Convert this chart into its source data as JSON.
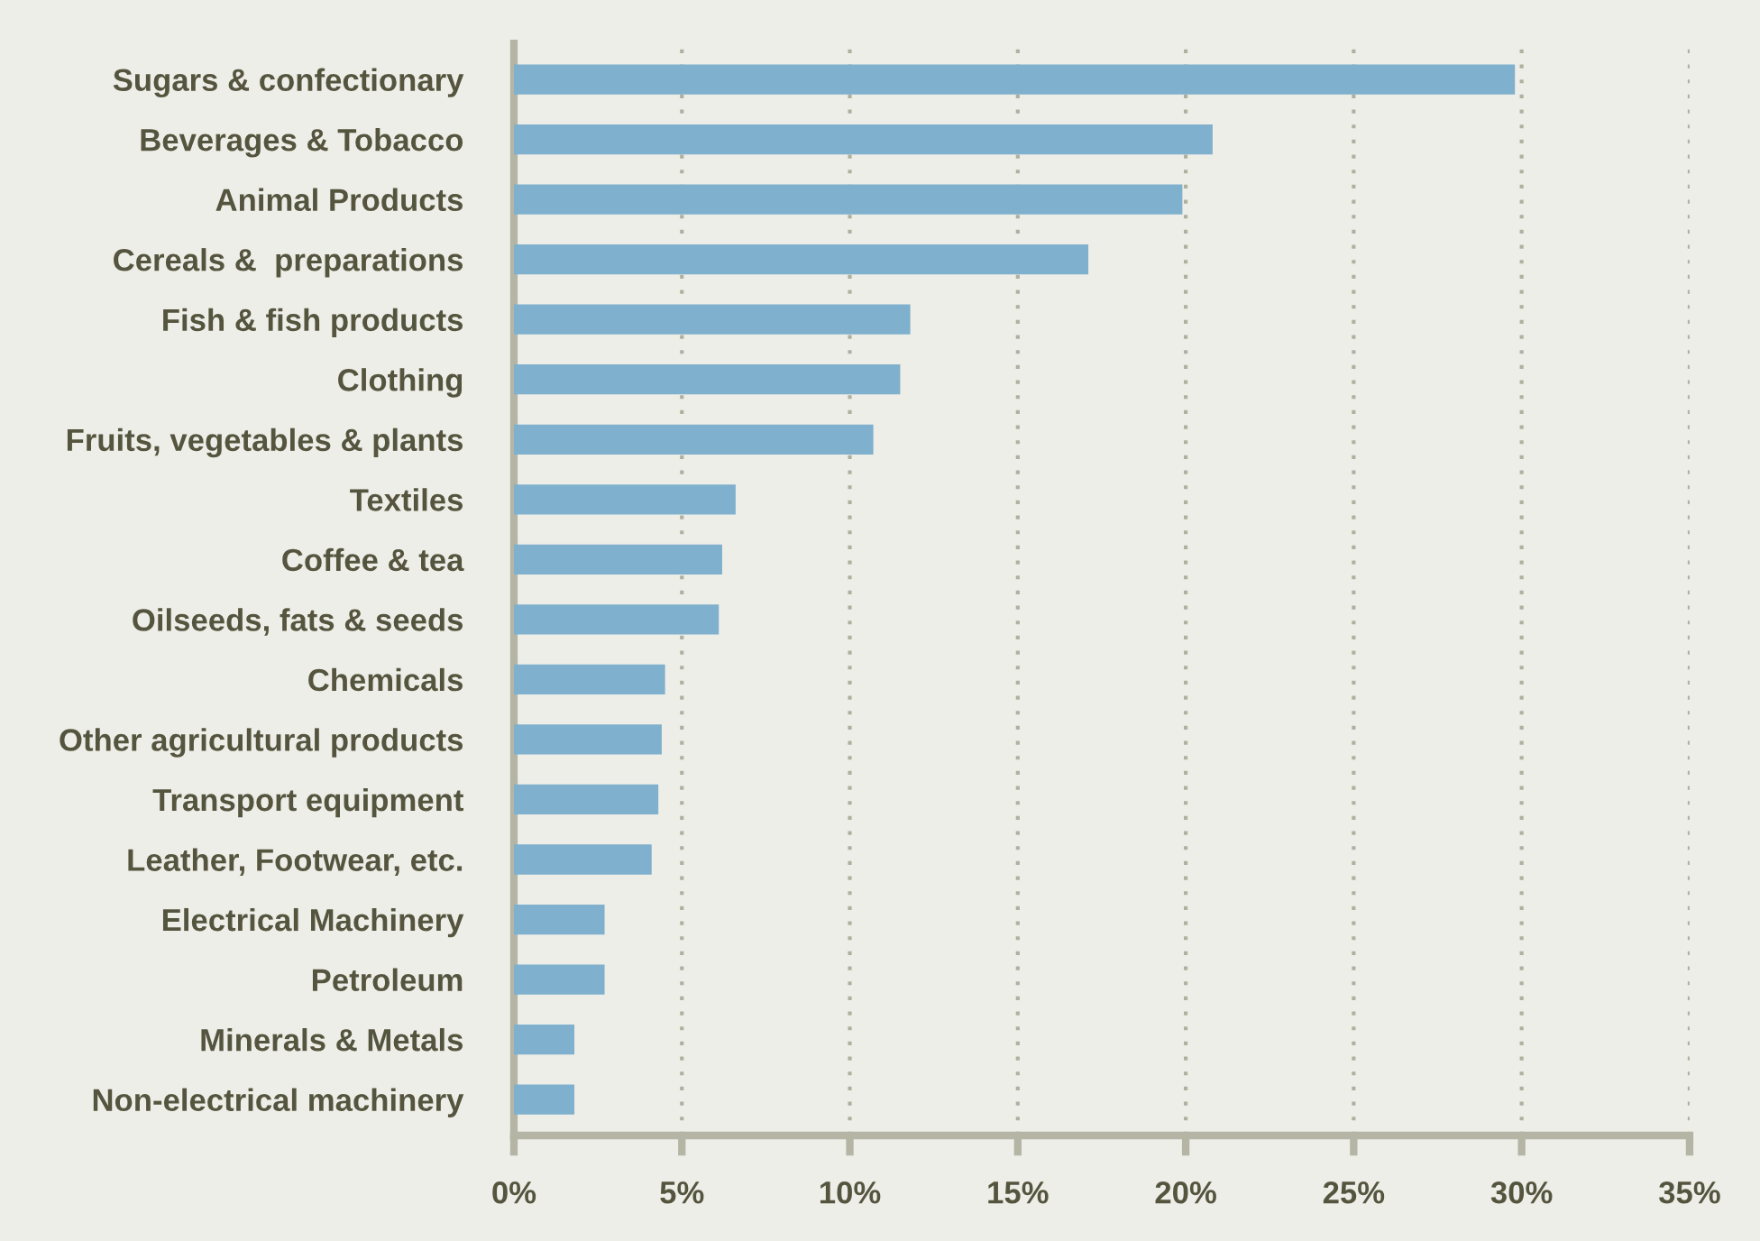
{
  "chart_data": {
    "type": "bar",
    "orientation": "horizontal",
    "categories": [
      "Sugars & confectionary",
      "Beverages & Tobacco",
      "Animal Products",
      "Cereals &  preparations",
      "Fish & fish products",
      "Clothing",
      "Fruits, vegetables & plants",
      "Textiles",
      "Coffee & tea",
      "Oilseeds, fats & seeds",
      "Chemicals",
      "Other agricultural products",
      "Transport equipment",
      "Leather, Footwear, etc.",
      "Electrical Machinery",
      "Petroleum",
      "Minerals & Metals",
      "Non-electrical machinery"
    ],
    "values": [
      29.8,
      20.8,
      19.9,
      17.1,
      11.8,
      11.5,
      10.7,
      6.6,
      6.2,
      6.1,
      4.5,
      4.4,
      4.3,
      4.1,
      2.7,
      2.7,
      1.8,
      1.8
    ],
    "color": "#7fb0cd",
    "xlim": [
      0,
      35
    ],
    "xticks": [
      {
        "value": 0,
        "label": "0%"
      },
      {
        "value": 5,
        "label": "5%"
      },
      {
        "value": 10,
        "label": "10%"
      },
      {
        "value": 15,
        "label": "15%"
      },
      {
        "value": 20,
        "label": "20%"
      },
      {
        "value": 25,
        "label": "25%"
      },
      {
        "value": 30,
        "label": "30%"
      },
      {
        "value": 35,
        "label": "35%"
      }
    ],
    "grid": "x"
  }
}
